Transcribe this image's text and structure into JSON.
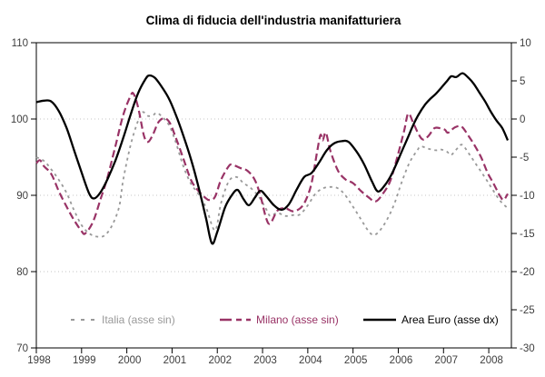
{
  "title": "Clima di fiducia dell'industria manifatturiera",
  "colors": {
    "italia": "#999999",
    "milano": "#993366",
    "area_euro": "#000000",
    "grid": "#c6c6c6",
    "axis": "#000000",
    "tick_label": "#3d3d3d",
    "background": "#ffffff"
  },
  "legend": [
    {
      "label": "Italia (asse sin)",
      "color": "#999999",
      "style": "dotted"
    },
    {
      "label": "Milano (asse sin)",
      "color": "#993366",
      "style": "dashed"
    },
    {
      "label": "Area Euro (asse dx)",
      "color": "#000000",
      "style": "solid"
    }
  ],
  "chart_data": {
    "type": "line",
    "title": "Clima di fiducia dell'industria manifatturiera",
    "x_axis": {
      "min": 1998.0,
      "max": 2008.5,
      "ticks": [
        1998,
        1999,
        2000,
        2001,
        2002,
        2003,
        2004,
        2005,
        2006,
        2007,
        2008
      ]
    },
    "y_left": {
      "min": 70,
      "max": 110,
      "ticks": [
        110,
        100,
        90,
        80,
        70
      ]
    },
    "y_right": {
      "min": -30,
      "max": 10,
      "ticks": [
        10,
        5,
        0,
        -5,
        -10,
        -15,
        -20,
        -25,
        -30
      ]
    },
    "gridlines_left": [
      100,
      90,
      80
    ],
    "grid": true,
    "legend_position": "bottom-inside",
    "series": [
      {
        "name": "Italia (asse sin)",
        "axis": "left",
        "color": "#999999",
        "dash": "3 4",
        "width": 1.8,
        "x": [
          1998.0,
          1998.17,
          1998.33,
          1998.5,
          1998.67,
          1998.83,
          1999.0,
          1999.17,
          1999.33,
          1999.5,
          1999.67,
          1999.83,
          1999.92,
          2000.08,
          2000.25,
          2000.35,
          2000.47,
          2000.58,
          2000.67,
          2000.83,
          2000.95,
          2001.08,
          2001.25,
          2001.42,
          2001.58,
          2001.75,
          2001.95,
          2002.08,
          2002.25,
          2002.42,
          2002.58,
          2002.75,
          2002.92,
          2003.08,
          2003.17,
          2003.33,
          2003.5,
          2003.67,
          2003.83,
          2004.0,
          2004.17,
          2004.33,
          2004.5,
          2004.67,
          2004.83,
          2005.0,
          2005.17,
          2005.33,
          2005.45,
          2005.58,
          2005.75,
          2005.92,
          2006.08,
          2006.25,
          2006.42,
          2006.5,
          2006.67,
          2006.83,
          2006.95,
          2007.08,
          2007.17,
          2007.33,
          2007.42,
          2007.58,
          2007.75,
          2007.92,
          2008.08,
          2008.25,
          2008.42
        ],
        "values": [
          95.0,
          94.5,
          93.4,
          92.0,
          90.3,
          88.1,
          86.1,
          85.0,
          84.6,
          84.7,
          86.0,
          88.5,
          92.0,
          96.5,
          99.8,
          100.9,
          100.4,
          100.5,
          100.8,
          100.0,
          99.0,
          97.0,
          93.8,
          91.5,
          90.2,
          88.4,
          85.4,
          88.9,
          91.8,
          92.4,
          91.6,
          90.9,
          89.8,
          88.2,
          87.3,
          87.7,
          87.3,
          87.4,
          87.5,
          88.7,
          90.2,
          90.9,
          91.1,
          90.9,
          90.0,
          88.5,
          86.9,
          85.4,
          84.8,
          85.3,
          86.8,
          89.0,
          91.8,
          94.3,
          95.9,
          96.4,
          96.1,
          95.9,
          96.0,
          95.7,
          95.3,
          96.3,
          96.6,
          95.3,
          93.8,
          92.3,
          90.8,
          89.3,
          88.3
        ]
      },
      {
        "name": "Milano (asse sin)",
        "axis": "left",
        "color": "#993366",
        "dash": "8 4",
        "width": 2.2,
        "x": [
          1998.0,
          1998.08,
          1998.17,
          1998.33,
          1998.5,
          1998.67,
          1998.83,
          1999.0,
          1999.08,
          1999.25,
          1999.42,
          1999.58,
          1999.75,
          1999.92,
          2000.08,
          2000.15,
          2000.25,
          2000.38,
          2000.47,
          2000.58,
          2000.7,
          2000.83,
          2000.95,
          2001.08,
          2001.25,
          2001.42,
          2001.58,
          2001.75,
          2001.83,
          2001.95,
          2002.08,
          2002.25,
          2002.33,
          2002.5,
          2002.67,
          2002.83,
          2002.95,
          2003.08,
          2003.17,
          2003.33,
          2003.5,
          2003.67,
          2003.83,
          2003.95,
          2004.08,
          2004.2,
          2004.28,
          2004.33,
          2004.4,
          2004.5,
          2004.67,
          2004.83,
          2005.0,
          2005.17,
          2005.33,
          2005.5,
          2005.67,
          2005.83,
          2006.0,
          2006.13,
          2006.22,
          2006.33,
          2006.45,
          2006.55,
          2006.67,
          2006.8,
          2006.92,
          2007.03,
          2007.1,
          2007.25,
          2007.4,
          2007.55,
          2007.67,
          2007.83,
          2007.97,
          2008.1,
          2008.25,
          2008.33,
          2008.42
        ],
        "values": [
          94.2,
          94.6,
          93.8,
          92.8,
          90.5,
          88.5,
          86.8,
          85.3,
          85.0,
          86.5,
          89.5,
          92.5,
          96.5,
          100.5,
          103.0,
          103.3,
          101.5,
          97.8,
          97.0,
          98.0,
          99.6,
          100.1,
          99.5,
          97.6,
          94.8,
          92.0,
          90.6,
          89.6,
          89.4,
          89.8,
          92.0,
          93.8,
          94.0,
          93.6,
          93.2,
          92.0,
          90.0,
          87.0,
          86.3,
          88.0,
          88.3,
          87.9,
          88.3,
          89.3,
          91.5,
          95.5,
          97.9,
          97.2,
          98.2,
          95.8,
          93.2,
          92.1,
          91.6,
          90.6,
          89.8,
          89.2,
          90.3,
          92.0,
          95.5,
          98.5,
          100.7,
          99.5,
          98.0,
          97.3,
          97.8,
          98.8,
          98.8,
          98.6,
          98.2,
          98.9,
          99.0,
          97.8,
          96.7,
          95.0,
          93.0,
          91.6,
          89.9,
          89.4,
          90.2
        ]
      },
      {
        "name": "Area Euro (asse dx)",
        "axis": "right",
        "color": "#000000",
        "dash": "",
        "width": 2.3,
        "x": [
          1998.0,
          1998.17,
          1998.33,
          1998.5,
          1998.67,
          1998.83,
          1999.0,
          1999.17,
          1999.28,
          1999.42,
          1999.58,
          1999.75,
          1999.92,
          2000.08,
          2000.25,
          2000.42,
          2000.5,
          2000.62,
          2000.75,
          2000.92,
          2001.08,
          2001.25,
          2001.42,
          2001.58,
          2001.75,
          2001.88,
          2002.0,
          2002.17,
          2002.33,
          2002.45,
          2002.58,
          2002.7,
          2002.83,
          2002.95,
          2003.08,
          2003.25,
          2003.42,
          2003.58,
          2003.75,
          2003.92,
          2004.08,
          2004.25,
          2004.42,
          2004.58,
          2004.75,
          2004.9,
          2005.08,
          2005.25,
          2005.42,
          2005.55,
          2005.7,
          2005.83,
          2005.95,
          2006.08,
          2006.2,
          2006.33,
          2006.45,
          2006.58,
          2006.7,
          2006.83,
          2006.95,
          2007.08,
          2007.17,
          2007.28,
          2007.42,
          2007.55,
          2007.67,
          2007.8,
          2007.92,
          2008.05,
          2008.17,
          2008.3,
          2008.42
        ],
        "values": [
          2.2,
          2.4,
          2.3,
          1.0,
          -1.2,
          -4.0,
          -7.0,
          -9.8,
          -10.4,
          -9.6,
          -7.8,
          -5.4,
          -2.5,
          0.5,
          3.4,
          5.3,
          5.7,
          5.4,
          4.4,
          2.8,
          0.6,
          -2.2,
          -5.3,
          -8.8,
          -13.0,
          -16.3,
          -14.8,
          -11.6,
          -9.9,
          -9.3,
          -10.5,
          -11.3,
          -10.3,
          -9.4,
          -10.1,
          -11.3,
          -11.9,
          -11.2,
          -9.3,
          -7.6,
          -7.1,
          -5.7,
          -4.1,
          -3.2,
          -2.9,
          -3.0,
          -4.3,
          -6.0,
          -8.2,
          -9.5,
          -8.7,
          -7.5,
          -6.0,
          -4.2,
          -2.6,
          -0.8,
          0.6,
          1.8,
          2.6,
          3.3,
          4.1,
          5.0,
          5.6,
          5.5,
          6.0,
          5.4,
          4.6,
          3.4,
          2.3,
          0.9,
          -0.2,
          -1.2,
          -2.8
        ]
      }
    ]
  }
}
